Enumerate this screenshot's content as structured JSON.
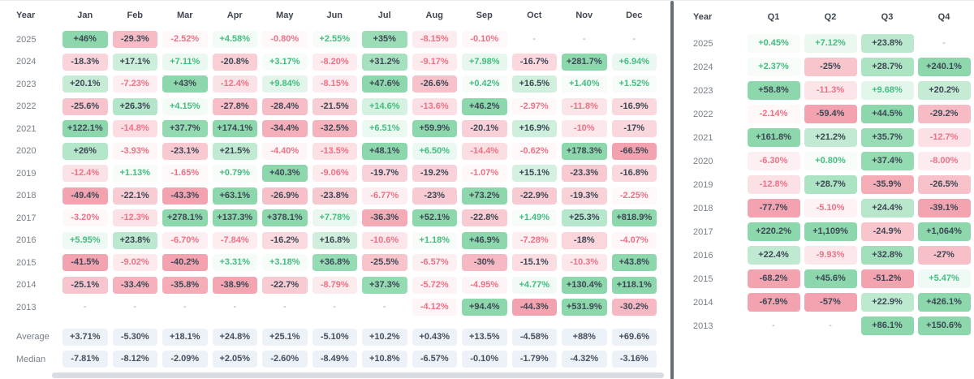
{
  "colors": {
    "positive_base": "#8cd8ac",
    "negative_base": "#f3a2af",
    "positive_text": "#43bd80",
    "negative_text": "#ed7186",
    "dark_text": "#3d4754",
    "summary_bg": "#edf1f8",
    "summary_text": "#46505c",
    "header_text": "#3f4650",
    "label_text": "#78808a",
    "dash_text": "#9aa1ac",
    "divider": "#676e78",
    "scrollbar": "#d9dde3"
  },
  "monthly_table": {
    "columns": [
      "Year",
      "Jan",
      "Feb",
      "Mar",
      "Apr",
      "May",
      "Jun",
      "Jul",
      "Aug",
      "Sep",
      "Oct",
      "Nov",
      "Dec"
    ],
    "rows": [
      {
        "year": "2025",
        "values": [
          "+46%",
          "-29.3%",
          "-2.52%",
          "+4.58%",
          "-0.80%",
          "+2.55%",
          "+35%",
          "-8.15%",
          "-0.10%",
          "-",
          "-",
          "-"
        ]
      },
      {
        "year": "2024",
        "values": [
          "-18.3%",
          "+17.1%",
          "+7.11%",
          "-20.8%",
          "+3.17%",
          "-8.20%",
          "+31.2%",
          "-9.17%",
          "+7.98%",
          "-16.7%",
          "+281.7%",
          "+6.94%"
        ]
      },
      {
        "year": "2023",
        "values": [
          "+20.1%",
          "-7.23%",
          "+43%",
          "-12.4%",
          "+9.84%",
          "-8.15%",
          "+47.6%",
          "-26.6%",
          "+0.42%",
          "+16.5%",
          "+1.40%",
          "+1.52%"
        ]
      },
      {
        "year": "2022",
        "values": [
          "-25.6%",
          "+26.3%",
          "+4.15%",
          "-27.8%",
          "-28.4%",
          "-21.5%",
          "+14.6%",
          "-13.6%",
          "+46.2%",
          "-2.97%",
          "-11.8%",
          "-16.9%"
        ]
      },
      {
        "year": "2021",
        "values": [
          "+122.1%",
          "-14.8%",
          "+37.7%",
          "+174.1%",
          "-34.4%",
          "-32.5%",
          "+6.51%",
          "+59.9%",
          "-20.1%",
          "+16.9%",
          "-10%",
          "-17%"
        ]
      },
      {
        "year": "2020",
        "values": [
          "+26%",
          "-3.93%",
          "-23.1%",
          "+21.5%",
          "-4.40%",
          "-13.5%",
          "+48.1%",
          "+6.50%",
          "-14.4%",
          "-0.62%",
          "+178.3%",
          "-66.5%"
        ]
      },
      {
        "year": "2019",
        "values": [
          "-12.4%",
          "+1.13%",
          "-1.65%",
          "+0.79%",
          "+40.3%",
          "-9.06%",
          "-19.7%",
          "-19.2%",
          "-1.07%",
          "+15.1%",
          "-23.3%",
          "-16.8%"
        ]
      },
      {
        "year": "2018",
        "values": [
          "-49.4%",
          "-22.1%",
          "-43.3%",
          "+63.1%",
          "-26.9%",
          "-23.8%",
          "-6.77%",
          "-23%",
          "+73.2%",
          "-22.9%",
          "-19.3%",
          "-2.25%"
        ]
      },
      {
        "year": "2017",
        "values": [
          "-3.20%",
          "-12.3%",
          "+278.1%",
          "+137.3%",
          "+378.1%",
          "+7.78%",
          "-36.3%",
          "+52.1%",
          "-22.8%",
          "+1.49%",
          "+25.3%",
          "+818.9%"
        ]
      },
      {
        "year": "2016",
        "values": [
          "+5.95%",
          "+23.8%",
          "-6.70%",
          "-7.84%",
          "-16.2%",
          "+16.8%",
          "-10.6%",
          "+1.18%",
          "+46.9%",
          "-7.28%",
          "-18%",
          "-4.07%"
        ]
      },
      {
        "year": "2015",
        "values": [
          "-41.5%",
          "-9.02%",
          "-40.2%",
          "+3.31%",
          "+3.18%",
          "+36.8%",
          "-25.5%",
          "-6.57%",
          "-30%",
          "-15.1%",
          "-10.3%",
          "+43.8%"
        ]
      },
      {
        "year": "2014",
        "values": [
          "-25.1%",
          "-33.4%",
          "-35.8%",
          "-38.9%",
          "-22.7%",
          "-8.79%",
          "+37.3%",
          "-5.72%",
          "-4.95%",
          "+4.77%",
          "+130.4%",
          "+118.1%"
        ]
      },
      {
        "year": "2013",
        "values": [
          "-",
          "-",
          "-",
          "-",
          "-",
          "-",
          "-",
          "-4.12%",
          "+94.4%",
          "-44.3%",
          "+531.9%",
          "-30.2%"
        ]
      }
    ],
    "summary_rows": [
      {
        "label": "Average",
        "values": [
          "+3.71%",
          "-5.30%",
          "+18.1%",
          "+24.8%",
          "+25.1%",
          "-5.10%",
          "+10.2%",
          "+0.43%",
          "+13.5%",
          "-4.58%",
          "+88%",
          "+69.6%"
        ]
      },
      {
        "label": "Median",
        "values": [
          "-7.81%",
          "-8.12%",
          "-2.09%",
          "+2.05%",
          "-2.60%",
          "-8.49%",
          "+10.8%",
          "-6.57%",
          "-0.10%",
          "-1.79%",
          "-4.32%",
          "-3.16%"
        ]
      }
    ]
  },
  "quarterly_table": {
    "columns": [
      "Year",
      "Q1",
      "Q2",
      "Q3",
      "Q4"
    ],
    "rows": [
      {
        "year": "2025",
        "values": [
          "+0.45%",
          "+7.12%",
          "+23.8%",
          "-"
        ]
      },
      {
        "year": "2024",
        "values": [
          "+2.37%",
          "-25%",
          "+28.7%",
          "+240.1%"
        ]
      },
      {
        "year": "2023",
        "values": [
          "+58.8%",
          "-11.3%",
          "+9.68%",
          "+20.2%"
        ]
      },
      {
        "year": "2022",
        "values": [
          "-2.14%",
          "-59.4%",
          "+44.5%",
          "-29.2%"
        ]
      },
      {
        "year": "2021",
        "values": [
          "+161.8%",
          "+21.2%",
          "+35.7%",
          "-12.7%"
        ]
      },
      {
        "year": "2020",
        "values": [
          "-6.30%",
          "+0.80%",
          "+37.4%",
          "-8.00%"
        ]
      },
      {
        "year": "2019",
        "values": [
          "-12.8%",
          "+28.7%",
          "-35.9%",
          "-26.5%"
        ]
      },
      {
        "year": "2018",
        "values": [
          "-77.7%",
          "-5.10%",
          "+24.4%",
          "-39.1%"
        ]
      },
      {
        "year": "2017",
        "values": [
          "+220.2%",
          "+1,109%",
          "-24.9%",
          "+1,064%"
        ]
      },
      {
        "year": "2016",
        "values": [
          "+22.4%",
          "-9.93%",
          "+32.8%",
          "-27%"
        ]
      },
      {
        "year": "2015",
        "values": [
          "-68.2%",
          "+45.6%",
          "-51.2%",
          "+5.47%"
        ]
      },
      {
        "year": "2014",
        "values": [
          "-67.9%",
          "-57%",
          "+22.9%",
          "+426.1%"
        ]
      },
      {
        "year": "2013",
        "values": [
          "-",
          "-",
          "+86.1%",
          "+150.6%"
        ]
      }
    ]
  }
}
